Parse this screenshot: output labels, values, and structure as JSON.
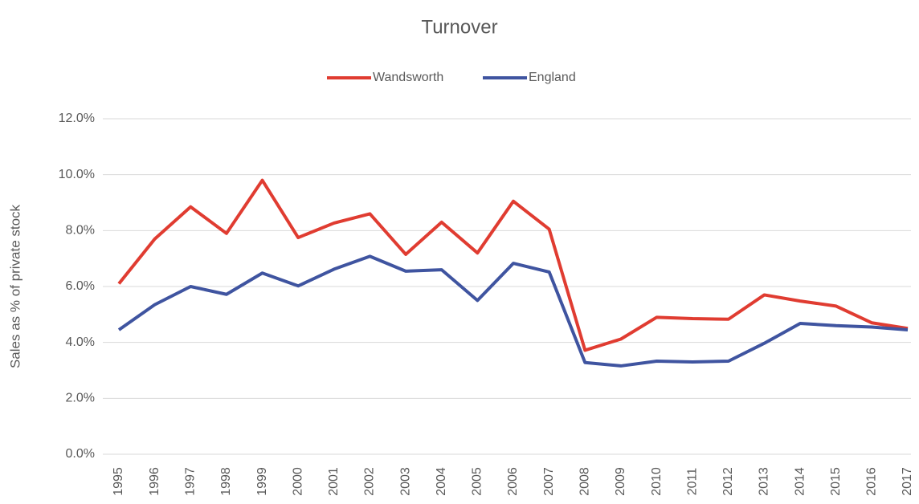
{
  "chart_data": {
    "type": "line",
    "title": "Turnover",
    "ylabel": "Sales as % of private stock",
    "categories": [
      "1995",
      "1996",
      "1997",
      "1998",
      "1999",
      "2000",
      "2001",
      "2002",
      "2003",
      "2004",
      "2005",
      "2006",
      "2007",
      "2008",
      "2009",
      "2010",
      "2011",
      "2012",
      "2013",
      "2014",
      "2015",
      "2016",
      "2017"
    ],
    "series": [
      {
        "name": "Wandsworth",
        "color": "#e03c31",
        "values": [
          6.1,
          7.7,
          8.85,
          7.9,
          9.8,
          7.75,
          8.27,
          8.6,
          7.15,
          8.3,
          7.2,
          9.05,
          8.05,
          3.72,
          4.12,
          4.9,
          4.85,
          4.83,
          5.7,
          5.48,
          5.3,
          4.7,
          4.5
        ]
      },
      {
        "name": "England",
        "color": "#3f54a0",
        "values": [
          4.45,
          5.35,
          6.0,
          5.72,
          6.48,
          6.02,
          6.62,
          7.08,
          6.55,
          6.6,
          5.5,
          6.83,
          6.52,
          3.28,
          3.16,
          3.33,
          3.3,
          3.33,
          3.97,
          4.68,
          4.6,
          4.55,
          4.45
        ]
      }
    ],
    "ylim": [
      0,
      12
    ],
    "yticks": [
      {
        "value": 0,
        "label": "0.0%"
      },
      {
        "value": 2,
        "label": "2.0%"
      },
      {
        "value": 4,
        "label": "4.0%"
      },
      {
        "value": 6,
        "label": "6.0%"
      },
      {
        "value": 8,
        "label": "8.0%"
      },
      {
        "value": 10,
        "label": "10.0%"
      },
      {
        "value": 12,
        "label": "12.0%"
      }
    ],
    "grid": true,
    "legend": "top"
  }
}
